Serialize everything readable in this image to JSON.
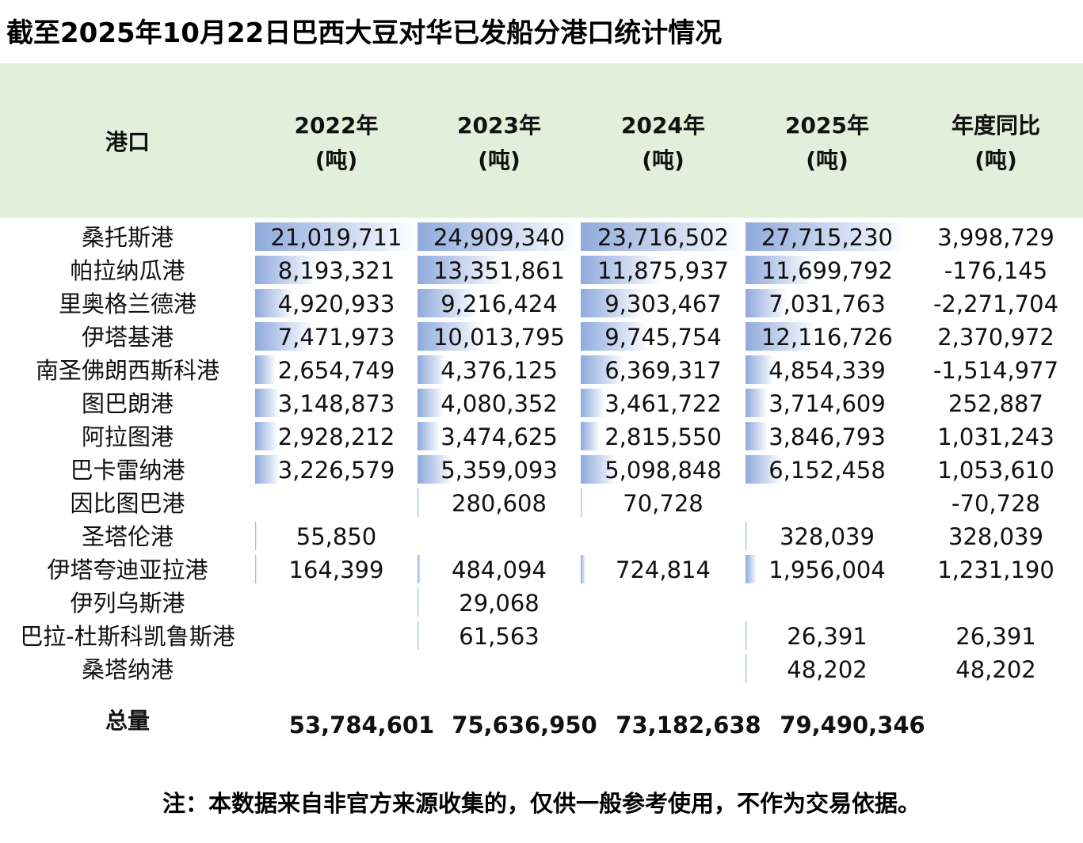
{
  "title": "截至2025年10月22日巴西大豆对华已发船分港口统计情况",
  "table": {
    "header": [
      [
        "港口"
      ],
      [
        "2022年",
        "(吨)"
      ],
      [
        "2023年",
        "(吨)"
      ],
      [
        "2024年",
        "(吨)"
      ],
      [
        "2025年",
        "(吨)"
      ],
      [
        "年度同比",
        "(吨)"
      ]
    ],
    "rows": [
      [
        "桑托斯港",
        "21,019,711",
        "24,909,340",
        "23,716,502",
        "27,715,230",
        "3,998,729"
      ],
      [
        "帕拉纳瓜港",
        "8,193,321",
        "13,351,861",
        "11,875,937",
        "11,699,792",
        "-176,145"
      ],
      [
        "里奥格兰德港",
        "4,920,933",
        "9,216,424",
        "9,303,467",
        "7,031,763",
        "-2,271,704"
      ],
      [
        "伊塔基港",
        "7,471,973",
        "10,013,795",
        "9,745,754",
        "12,116,726",
        "2,370,972"
      ],
      [
        "南圣佛朗西斯科港",
        "2,654,749",
        "4,376,125",
        "6,369,317",
        "4,854,339",
        "-1,514,977"
      ],
      [
        "图巴朗港",
        "3,148,873",
        "4,080,352",
        "3,461,722",
        "3,714,609",
        "252,887"
      ],
      [
        "阿拉图港",
        "2,928,212",
        "3,474,625",
        "2,815,550",
        "3,846,793",
        "1,031,243"
      ],
      [
        "巴卡雷纳港",
        "3,226,579",
        "5,359,093",
        "5,098,848",
        "6,152,458",
        "1,053,610"
      ],
      [
        "因比图巴港",
        null,
        "280,608",
        "70,728",
        null,
        "-70,728"
      ],
      [
        "圣塔伦港",
        "55,850",
        null,
        null,
        "328,039",
        "328,039"
      ],
      [
        "伊塔夸迪亚拉港",
        "164,399",
        "484,094",
        "724,814",
        "1,956,004",
        "1,231,190"
      ],
      [
        "伊列乌斯港",
        null,
        "29,068",
        null,
        null,
        null
      ],
      [
        "巴拉-杜斯科凯鲁斯港",
        null,
        "61,563",
        null,
        "26,391",
        "26,391"
      ],
      [
        "桑塔纳港",
        null,
        null,
        null,
        "48,202",
        "48,202"
      ]
    ],
    "total": [
      "总量",
      "53,784,601",
      "75,636,950",
      "73,182,638",
      "79,490,346",
      null
    ]
  },
  "note": "注：本数据来自非官方来源收集的，仅供一般参考使用，不作为交易依据。"
}
